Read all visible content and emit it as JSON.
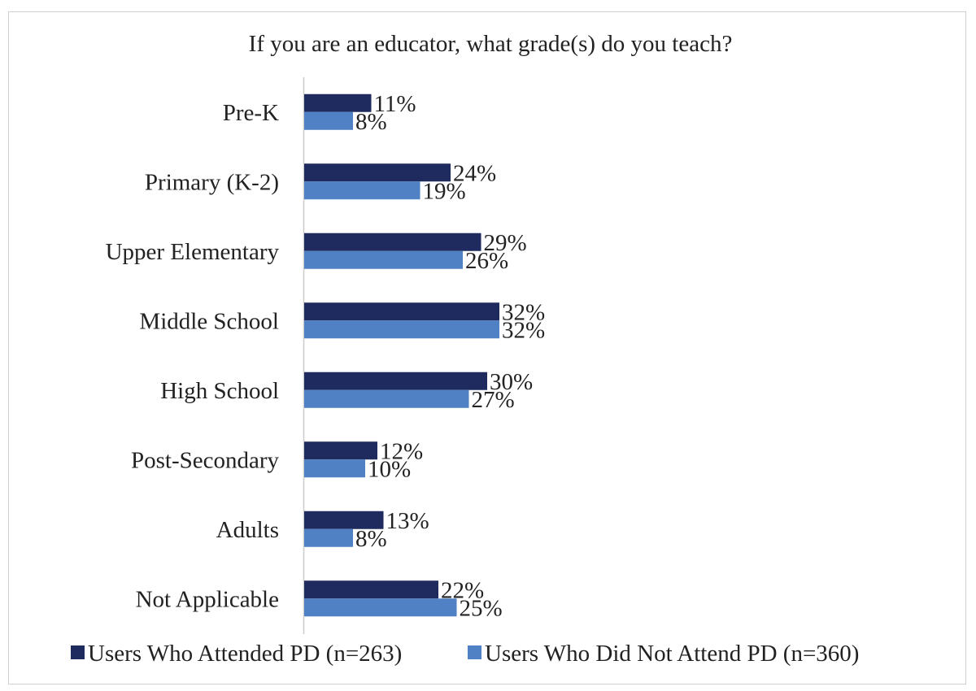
{
  "chart_data": {
    "type": "bar",
    "orientation": "horizontal",
    "title": "If you are an educator, what grade(s) do you teach?",
    "categories": [
      "Pre-K",
      "Primary (K-2)",
      "Upper Elementary",
      "Middle School",
      "High School",
      "Post-Secondary",
      "Adults",
      "Not Applicable"
    ],
    "series": [
      {
        "name": "Users Who Attended PD (n=263)",
        "color": "#1f2a5e",
        "values": [
          11,
          24,
          29,
          32,
          30,
          12,
          13,
          22
        ],
        "labels": [
          "11%",
          "24%",
          "29%",
          "32%",
          "30%",
          "12%",
          "13%",
          "22%"
        ]
      },
      {
        "name": "Users Who Did Not Attend PD (n=360)",
        "color": "#4f81c4",
        "values": [
          8,
          19,
          26,
          32,
          27,
          10,
          8,
          25
        ],
        "labels": [
          "8%",
          "19%",
          "26%",
          "32%",
          "27%",
          "10%",
          "8%",
          "25%"
        ]
      }
    ],
    "value_unit": "%",
    "xlim": [
      0,
      100
    ],
    "grid": false,
    "legend_position": "bottom"
  }
}
